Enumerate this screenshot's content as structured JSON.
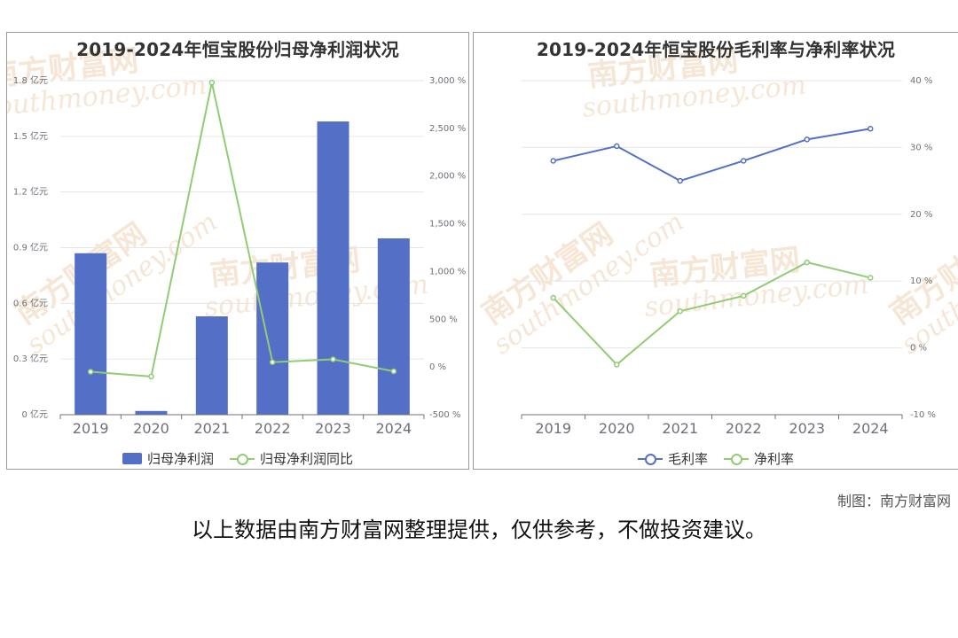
{
  "watermark": {
    "cn": "南方财富网",
    "en": "southmoney.com",
    "color": "#f0d2b4"
  },
  "chart_data": [
    {
      "type": "bar+line",
      "title": "2019-2024年恒宝股份归母净利润状况",
      "categories": [
        "2019",
        "2020",
        "2021",
        "2022",
        "2023",
        "2024"
      ],
      "y_left": {
        "ticks": [
          "0 亿元",
          "0.3 亿元",
          "0.6 亿元",
          "0.9 亿元",
          "1.2 亿元",
          "1.5 亿元",
          "1.8 亿元"
        ],
        "range": [
          0,
          1.8
        ]
      },
      "y_right": {
        "ticks": [
          "-500 %",
          "0 %",
          "500 %",
          "1,000 %",
          "1,500 %",
          "2,000 %",
          "2,500 %",
          "3,000 %"
        ],
        "range": [
          -500,
          3000
        ]
      },
      "series": [
        {
          "name": "归母净利润",
          "type": "bar",
          "axis": "left",
          "color": "#5470c6",
          "values": [
            0.87,
            0.02,
            0.53,
            0.82,
            1.58,
            0.95
          ]
        },
        {
          "name": "归母净利润同比",
          "type": "line",
          "axis": "right",
          "color": "#91cc75",
          "values": [
            -50,
            -100,
            2980,
            50,
            80,
            -45
          ]
        }
      ]
    },
    {
      "type": "line",
      "title": "2019-2024年恒宝股份毛利率与净利率状况",
      "categories": [
        "2019",
        "2020",
        "2021",
        "2022",
        "2023",
        "2024"
      ],
      "y_right": {
        "ticks": [
          "-10 %",
          "0 %",
          "10 %",
          "20 %",
          "30 %",
          "40 %"
        ],
        "range": [
          -10,
          40
        ]
      },
      "series": [
        {
          "name": "毛利率",
          "color": "#5470c6",
          "values": [
            28,
            30.2,
            25,
            28,
            31.2,
            32.8
          ]
        },
        {
          "name": "净利率",
          "color": "#91cc75",
          "values": [
            7.5,
            -2.5,
            5.5,
            7.8,
            12.8,
            10.5
          ]
        }
      ]
    }
  ],
  "credit": "制图：南方财富网",
  "disclaimer": "以上数据由南方财富网整理提供，仅供参考，不做投资建议。"
}
